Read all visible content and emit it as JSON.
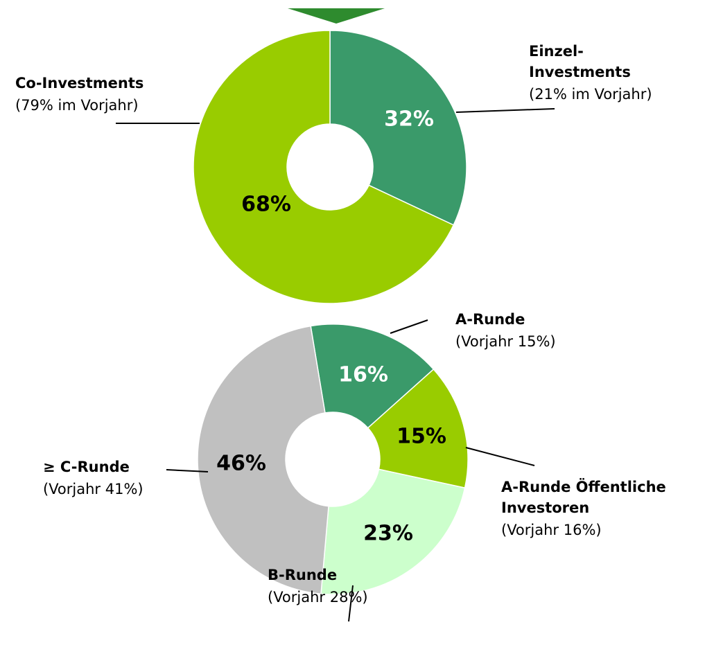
{
  "chart_data": [
    {
      "type": "donut",
      "categories": [
        [
          "Einzel-",
          "Investments"
        ],
        [
          "Co-Investments"
        ]
      ],
      "values": [
        32,
        68
      ],
      "value_labels": [
        "32%",
        "68%"
      ],
      "notes": [
        "(21% im Vorjahr)",
        "(79% im Vorjahr)"
      ],
      "colors": [
        "#3a9a6a",
        "#99cc00"
      ]
    },
    {
      "type": "donut",
      "categories": [
        [
          "A-Runde"
        ],
        [
          "A-Runde Öffentliche",
          "Investoren"
        ],
        [
          "B-Runde"
        ],
        [
          "≥ C-Runde"
        ]
      ],
      "values": [
        16,
        15,
        23,
        46
      ],
      "value_labels": [
        "16%",
        "15%",
        "23%",
        "46%"
      ],
      "notes": [
        "(Vorjahr 15%)",
        "(Vorjahr 16%)",
        "(Vorjahr 28%)",
        "(Vorjahr 41%)"
      ],
      "colors": [
        "#3a9a6a",
        "#99cc00",
        "#ccffcc",
        "#c0c0c0"
      ]
    }
  ]
}
